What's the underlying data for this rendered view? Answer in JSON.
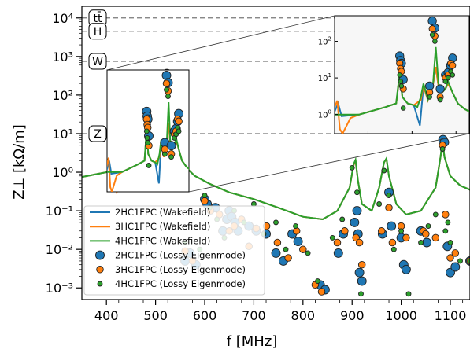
{
  "chart_data": {
    "type": "line",
    "xlabel": "f [MHz]",
    "ylabel": "Z⊥ [kΩ/m]",
    "xlim": [
      350,
      1140
    ],
    "ylim": [
      0.0005,
      20000
    ],
    "yscale": "log",
    "xticks": [
      "400",
      "500",
      "600",
      "700",
      "800",
      "900",
      "1000",
      "1100"
    ],
    "yticks": [
      "10⁻³",
      "10⁻²",
      "10⁻¹",
      "10⁰",
      "10¹",
      "10²",
      "10³",
      "10⁴"
    ],
    "thresholds": [
      {
        "label": "tt̄",
        "value": 10000
      },
      {
        "label": "H",
        "value": 4500
      },
      {
        "label": "W",
        "value": 750
      },
      {
        "label": "Z",
        "value": 10
      }
    ],
    "series": [
      {
        "name": "2HC1FPC (Wakefield)",
        "color": "#1f77b4",
        "points": [
          [
            350,
            0.75
          ],
          [
            400,
            1.0
          ],
          [
            412,
            1.2
          ],
          [
            416,
            2.0
          ],
          [
            420,
            0.9
          ],
          [
            440,
            1.0
          ],
          [
            470,
            1.6
          ],
          [
            482,
            2.0
          ],
          [
            486,
            12
          ],
          [
            489,
            3.0
          ],
          [
            495,
            2.0
          ],
          [
            502,
            1.8
          ],
          [
            509,
            0.5
          ],
          [
            513,
            6.0
          ],
          [
            518,
            2.5
          ],
          [
            521,
            5.0
          ],
          [
            524,
            7.0
          ],
          [
            527,
            20
          ],
          [
            530,
            6.0
          ],
          [
            534,
            4.0
          ],
          [
            538,
            5.0
          ],
          [
            541,
            7.0
          ],
          [
            546,
            4.0
          ],
          [
            552,
            2.0
          ],
          [
            560,
            1.4
          ],
          [
            580,
            0.8
          ],
          [
            610,
            0.5
          ],
          [
            650,
            0.3
          ],
          [
            700,
            0.2
          ],
          [
            750,
            0.12
          ],
          [
            800,
            0.07
          ],
          [
            840,
            0.06
          ],
          [
            870,
            0.1
          ],
          [
            895,
            0.4
          ],
          [
            903,
            1.5
          ],
          [
            907,
            2.0
          ],
          [
            912,
            0.6
          ],
          [
            920,
            0.15
          ],
          [
            940,
            0.1
          ],
          [
            955,
            0.4
          ],
          [
            965,
            1.8
          ],
          [
            970,
            2.2
          ],
          [
            975,
            0.8
          ],
          [
            990,
            0.15
          ],
          [
            1010,
            0.08
          ],
          [
            1040,
            0.1
          ],
          [
            1070,
            0.4
          ],
          [
            1080,
            2.5
          ],
          [
            1084,
            6.5
          ],
          [
            1088,
            2.5
          ],
          [
            1100,
            0.8
          ],
          [
            1120,
            0.45
          ],
          [
            1140,
            0.35
          ]
        ]
      },
      {
        "name": "3HC1FPC (Wakefield)",
        "color": "#ff7f0e",
        "points": [
          [
            350,
            0.75
          ],
          [
            400,
            1.0
          ],
          [
            410,
            1.2
          ],
          [
            415,
            2.4
          ],
          [
            418,
            0.4
          ],
          [
            421,
            0.3
          ],
          [
            430,
            0.8
          ],
          [
            440,
            1.0
          ],
          [
            470,
            1.6
          ],
          [
            482,
            2.0
          ],
          [
            486,
            12
          ],
          [
            489,
            3.0
          ],
          [
            495,
            2.0
          ],
          [
            502,
            1.8
          ],
          [
            510,
            2.5
          ],
          [
            513,
            6.0
          ],
          [
            518,
            2.5
          ],
          [
            521,
            5.0
          ],
          [
            524,
            7.0
          ],
          [
            527,
            20
          ],
          [
            530,
            6.0
          ],
          [
            534,
            4.0
          ],
          [
            538,
            5.0
          ],
          [
            541,
            7.0
          ],
          [
            546,
            4.0
          ],
          [
            552,
            2.0
          ],
          [
            560,
            1.4
          ],
          [
            580,
            0.8
          ],
          [
            610,
            0.5
          ],
          [
            650,
            0.3
          ],
          [
            700,
            0.2
          ],
          [
            750,
            0.12
          ],
          [
            800,
            0.07
          ],
          [
            840,
            0.06
          ],
          [
            870,
            0.1
          ],
          [
            895,
            0.4
          ],
          [
            903,
            1.5
          ],
          [
            907,
            2.0
          ],
          [
            912,
            0.6
          ],
          [
            920,
            0.15
          ],
          [
            940,
            0.1
          ],
          [
            955,
            0.4
          ],
          [
            965,
            1.8
          ],
          [
            970,
            2.2
          ],
          [
            975,
            0.8
          ],
          [
            990,
            0.15
          ],
          [
            1010,
            0.08
          ],
          [
            1040,
            0.1
          ],
          [
            1070,
            0.4
          ],
          [
            1080,
            2.5
          ],
          [
            1084,
            6.5
          ],
          [
            1088,
            2.5
          ],
          [
            1100,
            0.8
          ],
          [
            1120,
            0.45
          ],
          [
            1140,
            0.35
          ]
        ]
      },
      {
        "name": "4HC1FPC (Wakefield)",
        "color": "#2ca02c",
        "points": [
          [
            350,
            0.75
          ],
          [
            400,
            1.0
          ],
          [
            440,
            1.0
          ],
          [
            470,
            1.6
          ],
          [
            482,
            2.0
          ],
          [
            486,
            14
          ],
          [
            489,
            3.0
          ],
          [
            495,
            2.0
          ],
          [
            502,
            1.8
          ],
          [
            506,
            1.6
          ],
          [
            510,
            3.0
          ],
          [
            513,
            7.0
          ],
          [
            518,
            2.6
          ],
          [
            521,
            5.0
          ],
          [
            524,
            7.5
          ],
          [
            527,
            70
          ],
          [
            530,
            7.0
          ],
          [
            534,
            4.0
          ],
          [
            538,
            5.0
          ],
          [
            541,
            8.0
          ],
          [
            546,
            4.0
          ],
          [
            552,
            2.0
          ],
          [
            560,
            1.4
          ],
          [
            580,
            0.8
          ],
          [
            610,
            0.5
          ],
          [
            650,
            0.3
          ],
          [
            700,
            0.2
          ],
          [
            750,
            0.12
          ],
          [
            800,
            0.07
          ],
          [
            840,
            0.06
          ],
          [
            870,
            0.1
          ],
          [
            895,
            0.4
          ],
          [
            903,
            1.6
          ],
          [
            907,
            2.1
          ],
          [
            912,
            0.6
          ],
          [
            920,
            0.15
          ],
          [
            940,
            0.1
          ],
          [
            955,
            0.4
          ],
          [
            965,
            1.8
          ],
          [
            970,
            2.3
          ],
          [
            975,
            0.8
          ],
          [
            990,
            0.15
          ],
          [
            1010,
            0.08
          ],
          [
            1040,
            0.1
          ],
          [
            1070,
            0.4
          ],
          [
            1080,
            2.5
          ],
          [
            1084,
            7.0
          ],
          [
            1088,
            2.5
          ],
          [
            1100,
            0.8
          ],
          [
            1120,
            0.45
          ],
          [
            1140,
            0.35
          ]
        ]
      },
      {
        "name": "2HC1FPC (Lossy Eigenmode)",
        "color": "#1f77b4",
        "points": [
          [
            486,
            40
          ],
          [
            487,
            30
          ],
          [
            488,
            25
          ],
          [
            490,
            9
          ],
          [
            520,
            6
          ],
          [
            523,
            360
          ],
          [
            526,
            230
          ],
          [
            532,
            5
          ],
          [
            538,
            12
          ],
          [
            541,
            14
          ],
          [
            544,
            22
          ],
          [
            546,
            35
          ],
          [
            560,
            0.005
          ],
          [
            570,
            0.008
          ],
          [
            582,
            0.004
          ],
          [
            600,
            0.2
          ],
          [
            605,
            0.15
          ],
          [
            622,
            0.12
          ],
          [
            637,
            0.03
          ],
          [
            645,
            0.06
          ],
          [
            650,
            0.1
          ],
          [
            655,
            0.07
          ],
          [
            662,
            0.05
          ],
          [
            668,
            0.03
          ],
          [
            690,
            0.04
          ],
          [
            705,
            0.03
          ],
          [
            725,
            0.025
          ],
          [
            745,
            0.008
          ],
          [
            760,
            0.005
          ],
          [
            778,
            0.025
          ],
          [
            790,
            0.016
          ],
          [
            835,
            0.0012
          ],
          [
            845,
            0.0009
          ],
          [
            872,
            0.008
          ],
          [
            882,
            0.025
          ],
          [
            905,
            0.05
          ],
          [
            910,
            0.1
          ],
          [
            912,
            0.025
          ],
          [
            915,
            0.0025
          ],
          [
            920,
            0.0015
          ],
          [
            962,
            0.025
          ],
          [
            975,
            0.3
          ],
          [
            980,
            0.04
          ],
          [
            1000,
            0.02
          ],
          [
            1005,
            0.004
          ],
          [
            1010,
            0.003
          ],
          [
            1040,
            0.03
          ],
          [
            1052,
            0.015
          ],
          [
            1085,
            7
          ],
          [
            1088,
            6
          ],
          [
            1094,
            0.012
          ],
          [
            1100,
            0.0025
          ],
          [
            1110,
            0.0035
          ],
          [
            1140,
            0.005
          ]
        ]
      },
      {
        "name": "3HC1FPC (Lossy Eigenmode)",
        "color": "#ff7f0e",
        "points": [
          [
            486,
            25
          ],
          [
            487,
            18
          ],
          [
            488,
            15
          ],
          [
            490,
            5
          ],
          [
            520,
            4
          ],
          [
            523,
            220
          ],
          [
            526,
            140
          ],
          [
            532,
            3
          ],
          [
            538,
            10
          ],
          [
            541,
            12
          ],
          [
            544,
            25
          ],
          [
            546,
            22
          ],
          [
            560,
            0.009
          ],
          [
            575,
            0.005
          ],
          [
            600,
            0.18
          ],
          [
            612,
            0.1
          ],
          [
            630,
            0.08
          ],
          [
            650,
            0.03
          ],
          [
            660,
            0.04
          ],
          [
            675,
            0.06
          ],
          [
            690,
            0.012
          ],
          [
            705,
            0.035
          ],
          [
            726,
            0.04
          ],
          [
            748,
            0.015
          ],
          [
            770,
            0.006
          ],
          [
            787,
            0.03
          ],
          [
            800,
            0.01
          ],
          [
            825,
            0.0012
          ],
          [
            838,
            0.0008
          ],
          [
            870,
            0.015
          ],
          [
            885,
            0.03
          ],
          [
            908,
            0.02
          ],
          [
            915,
            0.015
          ],
          [
            920,
            0.004
          ],
          [
            960,
            0.03
          ],
          [
            975,
            0.12
          ],
          [
            982,
            0.015
          ],
          [
            1000,
            0.04
          ],
          [
            1010,
            0.02
          ],
          [
            1045,
            0.03
          ],
          [
            1050,
            0.025
          ],
          [
            1070,
            0.02
          ],
          [
            1084,
            5
          ],
          [
            1090,
            0.08
          ],
          [
            1100,
            0.006
          ],
          [
            1110,
            0.008
          ],
          [
            1140,
            0.005
          ]
        ]
      },
      {
        "name": "4HC1FPC (Lossy Eigenmode)",
        "color": "#2ca02c",
        "points": [
          [
            486,
            12
          ],
          [
            487,
            8
          ],
          [
            488,
            6
          ],
          [
            490,
            1.5
          ],
          [
            520,
            3
          ],
          [
            523,
            150
          ],
          [
            526,
            100
          ],
          [
            532,
            2.5
          ],
          [
            538,
            8
          ],
          [
            541,
            10
          ],
          [
            544,
            15
          ],
          [
            546,
            12
          ],
          [
            560,
            0.015
          ],
          [
            590,
            0.01
          ],
          [
            600,
            0.25
          ],
          [
            610,
            0.12
          ],
          [
            625,
            0.06
          ],
          [
            640,
            0.02
          ],
          [
            660,
            0.1
          ],
          [
            680,
            0.05
          ],
          [
            700,
            0.15
          ],
          [
            720,
            0.025
          ],
          [
            745,
            0.05
          ],
          [
            765,
            0.01
          ],
          [
            785,
            0.04
          ],
          [
            810,
            0.008
          ],
          [
            830,
            0.0015
          ],
          [
            860,
            0.02
          ],
          [
            880,
            0.06
          ],
          [
            900,
            1.3
          ],
          [
            910,
            0.3
          ],
          [
            918,
            0.0007
          ],
          [
            955,
            0.15
          ],
          [
            965,
            1.1
          ],
          [
            975,
            0.25
          ],
          [
            985,
            0.01
          ],
          [
            1000,
            0.03
          ],
          [
            1015,
            0.0007
          ],
          [
            1040,
            0.015
          ],
          [
            1055,
            0.04
          ],
          [
            1070,
            0.08
          ],
          [
            1084,
            4
          ],
          [
            1090,
            0.03
          ],
          [
            1095,
            0.05
          ],
          [
            1100,
            0.015
          ],
          [
            1120,
            0.005
          ],
          [
            1140,
            0.005
          ]
        ]
      }
    ],
    "inset": {
      "xlim": [
        412,
        565
      ],
      "ylim": [
        0.3,
        500
      ]
    }
  }
}
